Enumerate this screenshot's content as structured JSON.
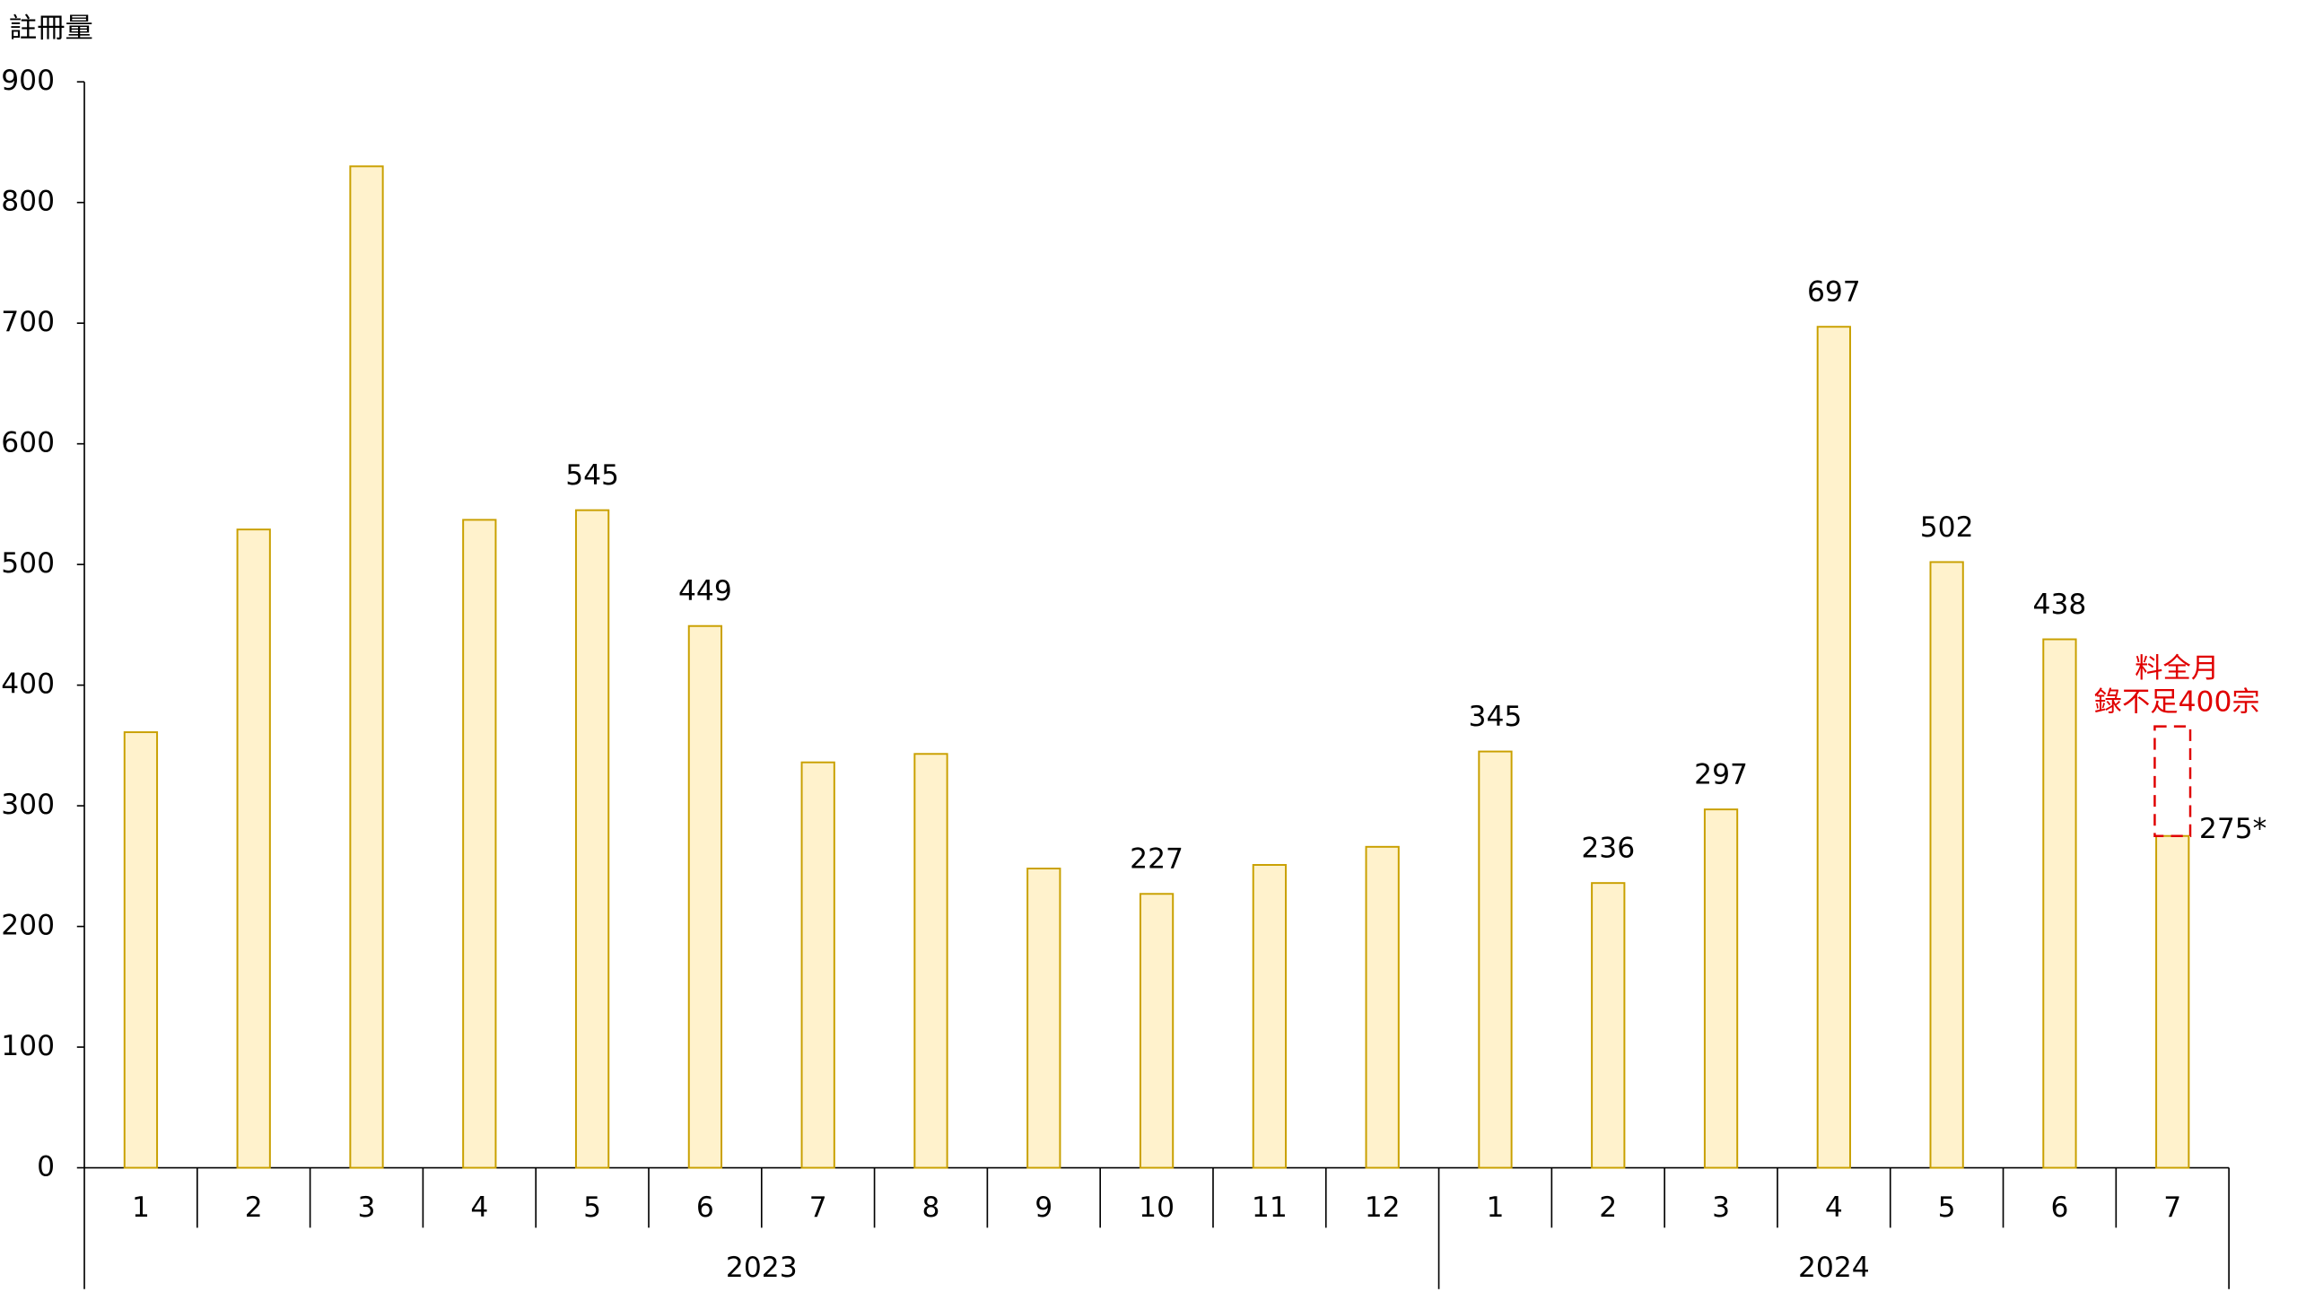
{
  "chart_data": {
    "type": "bar",
    "y_axis_label": "註冊量",
    "groups": [
      {
        "name": "2023",
        "categories": [
          "1",
          "2",
          "3",
          "4",
          "5",
          "6",
          "7",
          "8",
          "9",
          "10",
          "11",
          "12"
        ]
      },
      {
        "name": "2024",
        "categories": [
          "1",
          "2",
          "3",
          "4",
          "5",
          "6",
          "7"
        ]
      }
    ],
    "values": [
      361,
      529,
      830,
      537,
      545,
      449,
      336,
      343,
      248,
      227,
      251,
      266,
      345,
      236,
      297,
      697,
      502,
      438,
      275
    ],
    "value_labels": [
      null,
      null,
      null,
      null,
      "545",
      "449",
      null,
      null,
      null,
      "227",
      null,
      null,
      "345",
      "236",
      "297",
      "697",
      "502",
      "438",
      "275*"
    ],
    "color": "#fff2cc",
    "edge_color": "#c9a000",
    "ylim": [
      0,
      900
    ],
    "yticks": [
      0,
      100,
      200,
      300,
      400,
      500,
      600,
      700,
      800,
      900
    ],
    "annotation": {
      "lines": [
        "料全月",
        "錄不足400宗"
      ],
      "color": "#e00000"
    }
  }
}
